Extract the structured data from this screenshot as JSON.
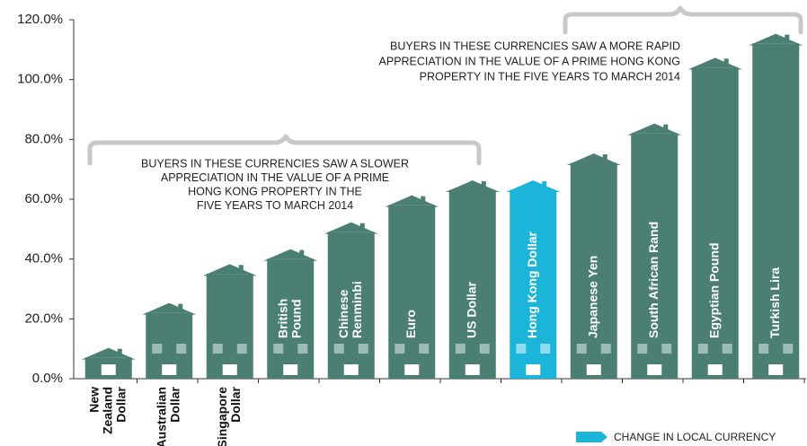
{
  "chart_data": {
    "type": "bar",
    "categories": [
      [
        "New",
        "Zealand",
        "Dollar"
      ],
      [
        "Australian",
        "Dollar"
      ],
      [
        "Singapore",
        "Dollar"
      ],
      [
        "British",
        "Pound"
      ],
      [
        "Chinese",
        "Renminbi"
      ],
      [
        "Euro"
      ],
      [
        "US Dollar"
      ],
      [
        "Hong Kong Dollar"
      ],
      [
        "Japanese Yen"
      ],
      [
        "South African Rand"
      ],
      [
        "Egyptian Pound"
      ],
      [
        "Turkish Lira"
      ]
    ],
    "values": [
      7,
      22,
      35,
      40,
      49,
      58,
      63,
      63,
      72,
      82,
      104,
      112
    ],
    "colors": [
      "#4a7f72",
      "#4a7f72",
      "#4a7f72",
      "#4a7f72",
      "#4a7f72",
      "#4a7f72",
      "#4a7f72",
      "#1ab5d8",
      "#4a7f72",
      "#4a7f72",
      "#4a7f72",
      "#4a7f72"
    ],
    "ylim": [
      0,
      120
    ],
    "yticks": [
      {
        "value": 0,
        "label": "0.0%"
      },
      {
        "value": 20,
        "label": "20.0%"
      },
      {
        "value": 40,
        "label": "40.0%"
      },
      {
        "value": 60,
        "label": "60.0%"
      },
      {
        "value": 80,
        "label": "80.0%"
      },
      {
        "value": 100,
        "label": "100.0%"
      },
      {
        "value": 120,
        "label": "120.0%"
      }
    ],
    "annotations": [
      [
        "BUYERS IN THESE CURRENCIES SAW A SLOWER",
        "APPRECIATION IN THE VALUE OF A PRIME",
        "HONG KONG PROPERTY IN THE",
        "FIVE YEARS TO MARCH 2014"
      ],
      [
        "BUYERS IN THESE CURRENCIES SAW A MORE RAPID",
        "APPRECIATION IN THE VALUE OF A PRIME HONG KONG",
        "PROPERTY IN THE FIVE YEARS TO MARCH 2014"
      ]
    ],
    "legend": {
      "label": "CHANGE IN LOCAL CURRENCY",
      "color": "#1ab5d8"
    }
  }
}
